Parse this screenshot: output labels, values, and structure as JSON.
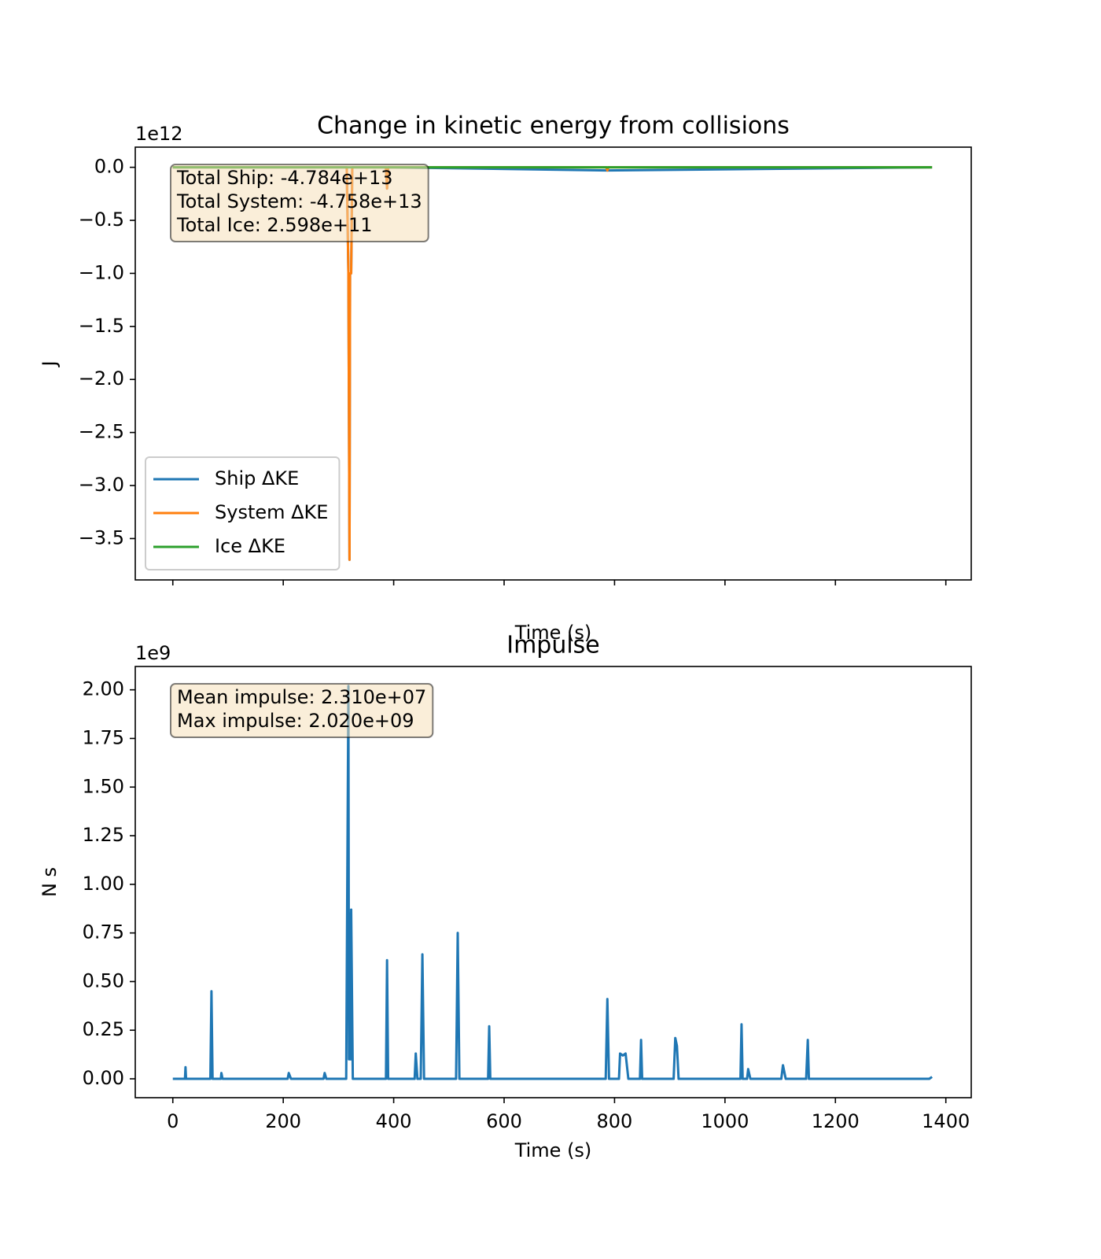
{
  "chart_data": [
    {
      "type": "line",
      "title": "Change in kinetic energy from collisions",
      "xlabel": "Time (s)",
      "ylabel": "J",
      "offset_text": "1e12",
      "xlim": [
        -68,
        1446
      ],
      "ylim": [
        -3.89,
        0.19
      ],
      "xticks": [
        0,
        200,
        400,
        600,
        800,
        1000,
        1200,
        1400
      ],
      "xticklabels": false,
      "yticks": [
        {
          "value": 0,
          "label": "0.0"
        },
        {
          "value": -0.5,
          "label": "−0.5"
        },
        {
          "value": -1,
          "label": "−1.0"
        },
        {
          "value": -1.5,
          "label": "−1.5"
        },
        {
          "value": -2,
          "label": "−2.0"
        },
        {
          "value": -2.5,
          "label": "−2.5"
        },
        {
          "value": -3,
          "label": "−3.0"
        },
        {
          "value": -3.5,
          "label": "−3.5"
        }
      ],
      "legend": "lower left",
      "annotation": [
        "Total Ship: -4.784e+13",
        "Total System: -4.758e+13",
        "Total Ice: 2.598e+11"
      ],
      "series": [
        {
          "name": "Ship ΔKE",
          "color": "#1f77b4",
          "x": [
            0,
            315,
            318,
            320,
            321,
            323,
            325,
            386,
            388,
            390,
            787,
            1375
          ],
          "values": [
            0,
            0,
            -1.0,
            -3.7,
            -1.0,
            -1.0,
            0,
            0,
            -0.2,
            0,
            -0.03,
            0
          ]
        },
        {
          "name": "System ΔKE",
          "color": "#ff7f0e",
          "x": [
            0,
            315,
            318,
            320,
            321,
            323,
            325,
            386,
            388,
            390,
            785,
            787,
            789,
            1375
          ],
          "values": [
            0,
            0,
            -1.0,
            -3.7,
            -1.0,
            -1.0,
            0,
            0,
            -0.2,
            0,
            0,
            -0.03,
            0,
            0
          ]
        },
        {
          "name": "Ice ΔKE",
          "color": "#2ca02c",
          "x": [
            0,
            1375
          ],
          "values": [
            0,
            0
          ]
        }
      ]
    },
    {
      "type": "line",
      "title": "Impulse",
      "xlabel": "Time (s)",
      "ylabel": "N s",
      "offset_text": "1e9",
      "xlim": [
        -68,
        1446
      ],
      "ylim": [
        -0.097,
        2.12
      ],
      "xticks": [
        0,
        200,
        400,
        600,
        800,
        1000,
        1200,
        1400
      ],
      "xticklabels": true,
      "yticks": [
        {
          "value": 0,
          "label": "0.00"
        },
        {
          "value": 0.25,
          "label": "0.25"
        },
        {
          "value": 0.5,
          "label": "0.50"
        },
        {
          "value": 0.75,
          "label": "0.75"
        },
        {
          "value": 1,
          "label": "1.00"
        },
        {
          "value": 1.25,
          "label": "1.25"
        },
        {
          "value": 1.5,
          "label": "1.50"
        },
        {
          "value": 1.75,
          "label": "1.75"
        },
        {
          "value": 2,
          "label": "2.00"
        }
      ],
      "annotation": [
        "Mean impulse: 2.310e+07",
        "Max impulse: 2.020e+09"
      ],
      "series": [
        {
          "color": "#1f77b4",
          "x": [
            0,
            22,
            23,
            24,
            68,
            70,
            72,
            87,
            88,
            90,
            208,
            210,
            214,
            273,
            275,
            278,
            314,
            318,
            319,
            320,
            322,
            323,
            326,
            386,
            388,
            390,
            438,
            440,
            443,
            449,
            452,
            455,
            513,
            516,
            519,
            571,
            573,
            575,
            784,
            787,
            790,
            808,
            810,
            815,
            820,
            825,
            846,
            848,
            850,
            907,
            910,
            913,
            916,
            1028,
            1030,
            1032,
            1040,
            1042,
            1046,
            1102,
            1105,
            1110,
            1147,
            1150,
            1152,
            1370,
            1375
          ],
          "values": [
            0,
            0,
            0.06,
            0,
            0,
            0.45,
            0,
            0,
            0.03,
            0,
            0,
            0.03,
            0,
            0,
            0.03,
            0,
            0,
            2.02,
            0.1,
            0.85,
            0.1,
            0.87,
            0,
            0,
            0.61,
            0,
            0,
            0.13,
            0,
            0,
            0.64,
            0,
            0,
            0.75,
            0,
            0,
            0.27,
            0,
            0,
            0.41,
            0,
            0,
            0.13,
            0.12,
            0.13,
            0,
            0,
            0.2,
            0,
            0,
            0.21,
            0.17,
            0,
            0,
            0.28,
            0,
            0,
            0.05,
            0,
            0,
            0.07,
            0,
            0,
            0.2,
            0,
            0,
            0.01
          ]
        }
      ]
    }
  ]
}
